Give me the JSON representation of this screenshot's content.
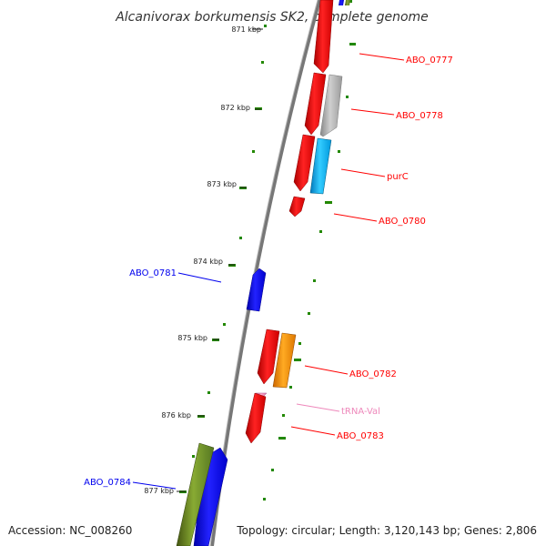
{
  "title": "Alcanivorax borkumensis SK2, complete genome",
  "footer": {
    "accession": "Accession: NC_008260",
    "summary": "Topology: circular; Length: 3,120,143 bp; Genes: 2,806"
  },
  "ticks": [
    "871 kbp",
    "872 kbp",
    "873 kbp",
    "874 kbp",
    "875 kbp",
    "876 kbp",
    "877 kbp"
  ],
  "features": [
    {
      "name": "ABO_0777",
      "labeled": true,
      "color": "#ff0000"
    },
    {
      "name": "ABO_0778",
      "labeled": true,
      "color": "#ff0000"
    },
    {
      "name": "",
      "labeled": false,
      "color": "#aaaaaa"
    },
    {
      "name": "purC",
      "labeled": true,
      "color": "#ff0000"
    },
    {
      "name": "",
      "labeled": false,
      "color": "#00aaee"
    },
    {
      "name": "ABO_0780",
      "labeled": true,
      "color": "#ff0000"
    },
    {
      "name": "ABO_0781",
      "labeled": true,
      "color": "#0000ee"
    },
    {
      "name": "ABO_0782",
      "labeled": true,
      "color": "#ff0000"
    },
    {
      "name": "",
      "labeled": false,
      "color": "#ff8800"
    },
    {
      "name": "tRNA-Val",
      "labeled": true,
      "color": "#ee88bb"
    },
    {
      "name": "ABO_0783",
      "labeled": true,
      "color": "#ff0000"
    },
    {
      "name": "ABO_0784",
      "labeled": true,
      "color": "#0000ee"
    },
    {
      "name": "",
      "labeled": false,
      "color": "#668822"
    }
  ],
  "colors": {
    "backbone": "#888888",
    "gc_dash": "#228800",
    "tick": "#222222",
    "cds": "#ff0000",
    "rna": "#ee88bb",
    "other": "#aaaaaa"
  }
}
